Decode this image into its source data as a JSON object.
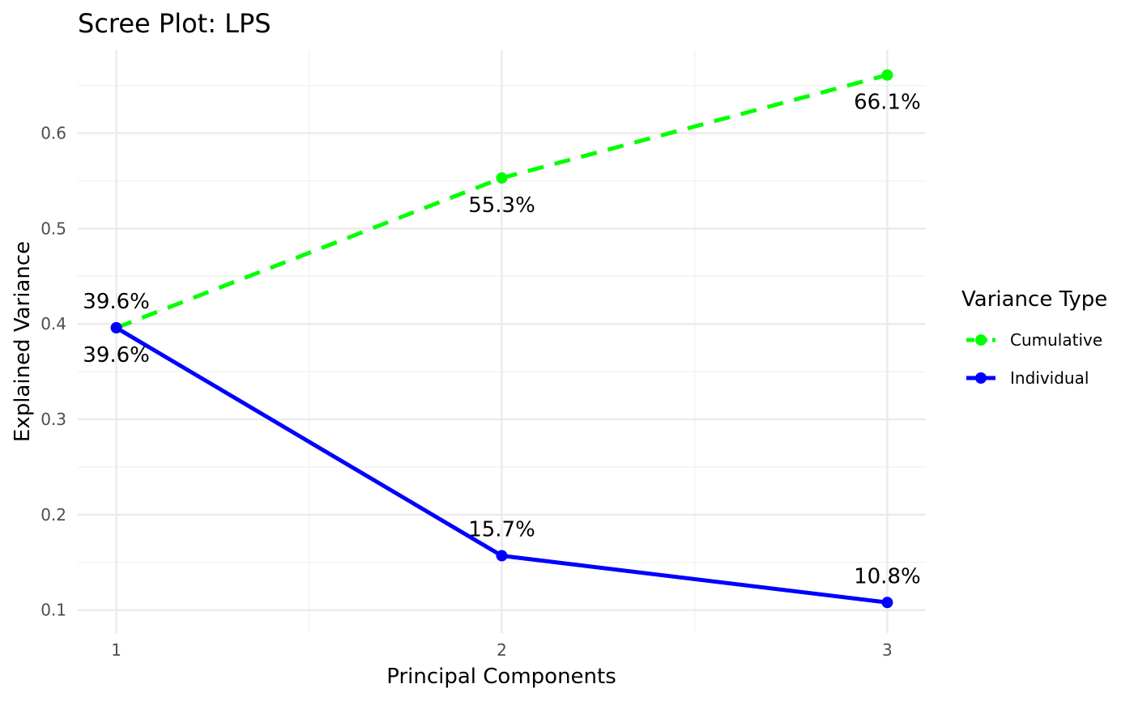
{
  "chart_data": {
    "type": "line",
    "title": "Scree Plot: LPS",
    "xlabel": "Principal Components",
    "ylabel": "Explained Variance",
    "x": [
      1,
      2,
      3
    ],
    "x_tick_labels": [
      "1",
      "2",
      "3"
    ],
    "y_ticks": [
      0.1,
      0.2,
      0.3,
      0.4,
      0.5,
      0.6
    ],
    "y_tick_labels": [
      "0.1",
      "0.2",
      "0.3",
      "0.4",
      "0.5",
      "0.6"
    ],
    "xlim": [
      0.9,
      3.1
    ],
    "ylim": [
      0.076,
      0.687
    ],
    "grid": true,
    "legend": {
      "title": "Variance Type",
      "position": "right"
    },
    "series": [
      {
        "name": "Cumulative",
        "values": [
          0.396,
          0.553,
          0.661
        ],
        "labels": [
          "39.6%",
          "55.3%",
          "66.1%"
        ],
        "label_position": "below",
        "color": "#00ff00",
        "line_style": "dashed"
      },
      {
        "name": "Individual",
        "values": [
          0.396,
          0.157,
          0.108
        ],
        "labels": [
          "39.6%",
          "15.7%",
          "10.8%"
        ],
        "label_position": "above",
        "color": "#0000ff",
        "line_style": "solid"
      }
    ]
  }
}
